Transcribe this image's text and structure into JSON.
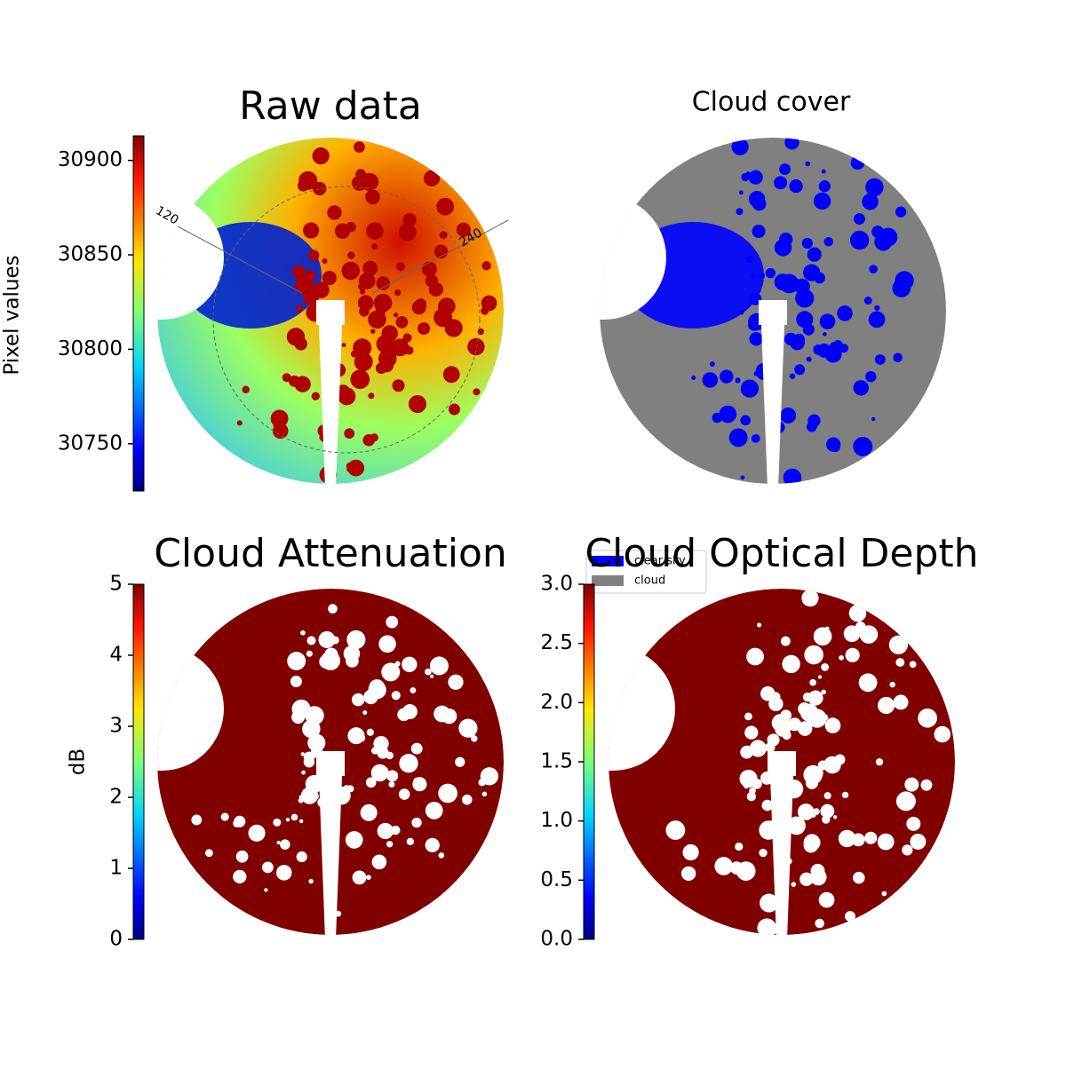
{
  "chart_data": [
    {
      "type": "image",
      "title": "Raw data",
      "colormap": "jet",
      "clabel": "Pixel values",
      "clim": [
        30725,
        30913
      ],
      "cticks": [
        30750,
        30800,
        30850,
        30900
      ],
      "annotations": [
        "120",
        "240"
      ]
    },
    {
      "type": "image",
      "title": "Cloud cover",
      "legend": [
        {
          "name": "clear sky",
          "color": "#0000ff"
        },
        {
          "name": "cloud",
          "color": "#808080"
        }
      ]
    },
    {
      "type": "image",
      "title": "Cloud Attenuation",
      "colormap": "jet",
      "clabel": "dB",
      "clim": [
        0,
        5
      ],
      "cticks": [
        0,
        1,
        2,
        3,
        4,
        5
      ]
    },
    {
      "type": "image",
      "title": "Cloud Optical Depth",
      "colormap": "jet",
      "clim": [
        0,
        3
      ],
      "cticks": [
        {
          "value": 0,
          "label": "0.0"
        },
        {
          "value": 0.5,
          "label": "0.5"
        },
        {
          "value": 1,
          "label": "1.0"
        },
        {
          "value": 1.5,
          "label": "1.5"
        },
        {
          "value": 2,
          "label": "2.0"
        },
        {
          "value": 2.5,
          "label": "2.5"
        },
        {
          "value": 3,
          "label": "3.0"
        }
      ]
    }
  ]
}
